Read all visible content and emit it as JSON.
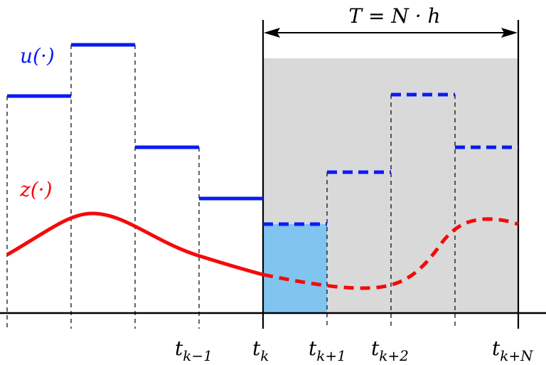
{
  "colors": {
    "background": "#ffffff",
    "horizon_shade": "#d9d9d9",
    "first_interval_fill": "#80c4f0",
    "control": "#0a1bf5",
    "state": "#f50a0a",
    "axis": "#000000"
  },
  "labels": {
    "horizon": "T = N · h",
    "control": "u(·)",
    "state": "z(·)"
  },
  "ticks": [
    {
      "base": "t",
      "sub": "k−1"
    },
    {
      "base": "t",
      "sub": "k"
    },
    {
      "base": "t",
      "sub": "k+1"
    },
    {
      "base": "t",
      "sub": "k+2"
    },
    {
      "base": "t",
      "sub": "k+N"
    }
  ],
  "control_levels": {
    "past": [
      4,
      5,
      3,
      2
    ],
    "predicted": [
      1.5,
      2.5,
      4,
      3
    ]
  }
}
